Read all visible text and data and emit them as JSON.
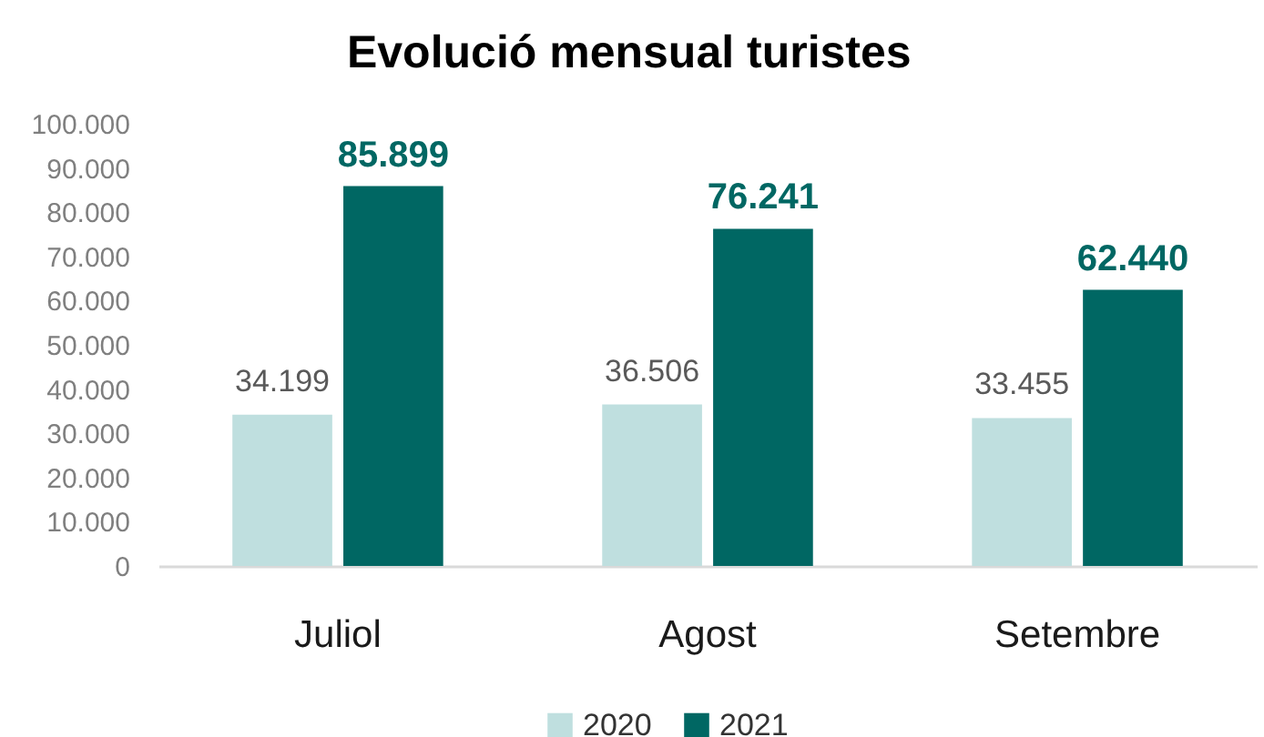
{
  "chart_data": {
    "type": "bar",
    "title": "Evolució mensual turistes",
    "categories": [
      "Juliol",
      "Agost",
      "Setembre"
    ],
    "series": [
      {
        "name": "2020",
        "color": "#bfdfdf",
        "values": [
          34199,
          36506,
          33455
        ],
        "value_labels": [
          "34.199",
          "36.506",
          "33.455"
        ]
      },
      {
        "name": "2021",
        "color": "#006763",
        "values": [
          85899,
          76241,
          62440
        ],
        "value_labels": [
          "85.899",
          "76.241",
          "62.440"
        ]
      }
    ],
    "ylim": [
      0,
      100000
    ],
    "yticks": [
      0,
      {
        "value": 10000,
        "label": "10.000"
      },
      {
        "value": 20000,
        "label": "20.000"
      },
      {
        "value": 30000,
        "label": "30.000"
      },
      {
        "value": 40000,
        "label": "40.000"
      },
      {
        "value": 50000,
        "label": "50.000"
      },
      {
        "value": 60000,
        "label": "60.000"
      },
      {
        "value": 70000,
        "label": "70.000"
      },
      {
        "value": 80000,
        "label": "80.000"
      },
      {
        "value": 90000,
        "label": "90.000"
      },
      {
        "value": 100000,
        "label": "100.000"
      }
    ],
    "legend": "bottom"
  }
}
